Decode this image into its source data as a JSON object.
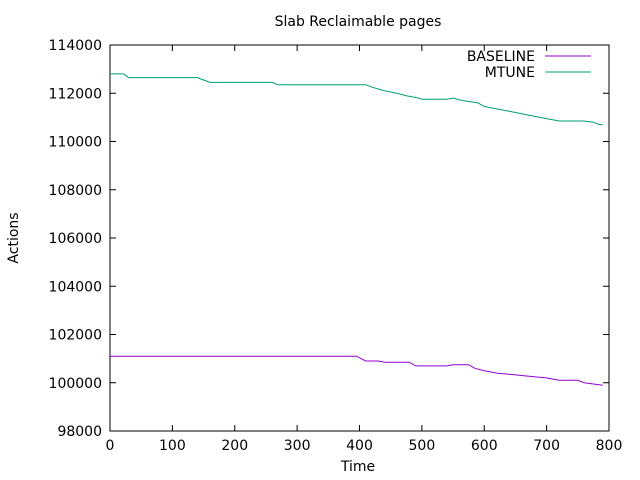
{
  "chart_data": {
    "type": "line",
    "title": "Slab Reclaimable pages",
    "xlabel": "Time",
    "ylabel": "Actions",
    "xlim": [
      0,
      800
    ],
    "ylim": [
      98000,
      114000
    ],
    "x_ticks": [
      "0",
      "100",
      "200",
      "300",
      "400",
      "500",
      "600",
      "700",
      "800"
    ],
    "y_ticks": [
      "98000",
      "100000",
      "102000",
      "104000",
      "106000",
      "108000",
      "110000",
      "112000",
      "114000"
    ],
    "grid": false,
    "legend_position": "top-right",
    "series": [
      {
        "name": "BASELINE",
        "color": "#9400d3",
        "points": [
          [
            0,
            101100
          ],
          [
            100,
            101100
          ],
          [
            200,
            101100
          ],
          [
            300,
            101100
          ],
          [
            395,
            101100
          ],
          [
            410,
            100900
          ],
          [
            430,
            100900
          ],
          [
            440,
            100850
          ],
          [
            480,
            100850
          ],
          [
            490,
            100700
          ],
          [
            540,
            100700
          ],
          [
            550,
            100750
          ],
          [
            575,
            100750
          ],
          [
            585,
            100600
          ],
          [
            600,
            100500
          ],
          [
            610,
            100450
          ],
          [
            620,
            100400
          ],
          [
            640,
            100350
          ],
          [
            660,
            100300
          ],
          [
            680,
            100250
          ],
          [
            700,
            100200
          ],
          [
            710,
            100150
          ],
          [
            720,
            100100
          ],
          [
            750,
            100100
          ],
          [
            760,
            100000
          ],
          [
            775,
            99950
          ],
          [
            790,
            99900
          ]
        ]
      },
      {
        "name": "MTUNE",
        "color": "#009e73",
        "points": [
          [
            0,
            112800
          ],
          [
            22,
            112800
          ],
          [
            30,
            112650
          ],
          [
            140,
            112650
          ],
          [
            150,
            112550
          ],
          [
            160,
            112450
          ],
          [
            260,
            112450
          ],
          [
            270,
            112350
          ],
          [
            410,
            112350
          ],
          [
            420,
            112250
          ],
          [
            440,
            112100
          ],
          [
            460,
            112000
          ],
          [
            475,
            111900
          ],
          [
            495,
            111800
          ],
          [
            500,
            111750
          ],
          [
            540,
            111750
          ],
          [
            550,
            111800
          ],
          [
            565,
            111700
          ],
          [
            590,
            111600
          ],
          [
            600,
            111450
          ],
          [
            620,
            111350
          ],
          [
            640,
            111250
          ],
          [
            660,
            111150
          ],
          [
            680,
            111050
          ],
          [
            700,
            110950
          ],
          [
            720,
            110850
          ],
          [
            760,
            110850
          ],
          [
            775,
            110800
          ],
          [
            785,
            110700
          ],
          [
            790,
            110700
          ]
        ]
      }
    ]
  }
}
